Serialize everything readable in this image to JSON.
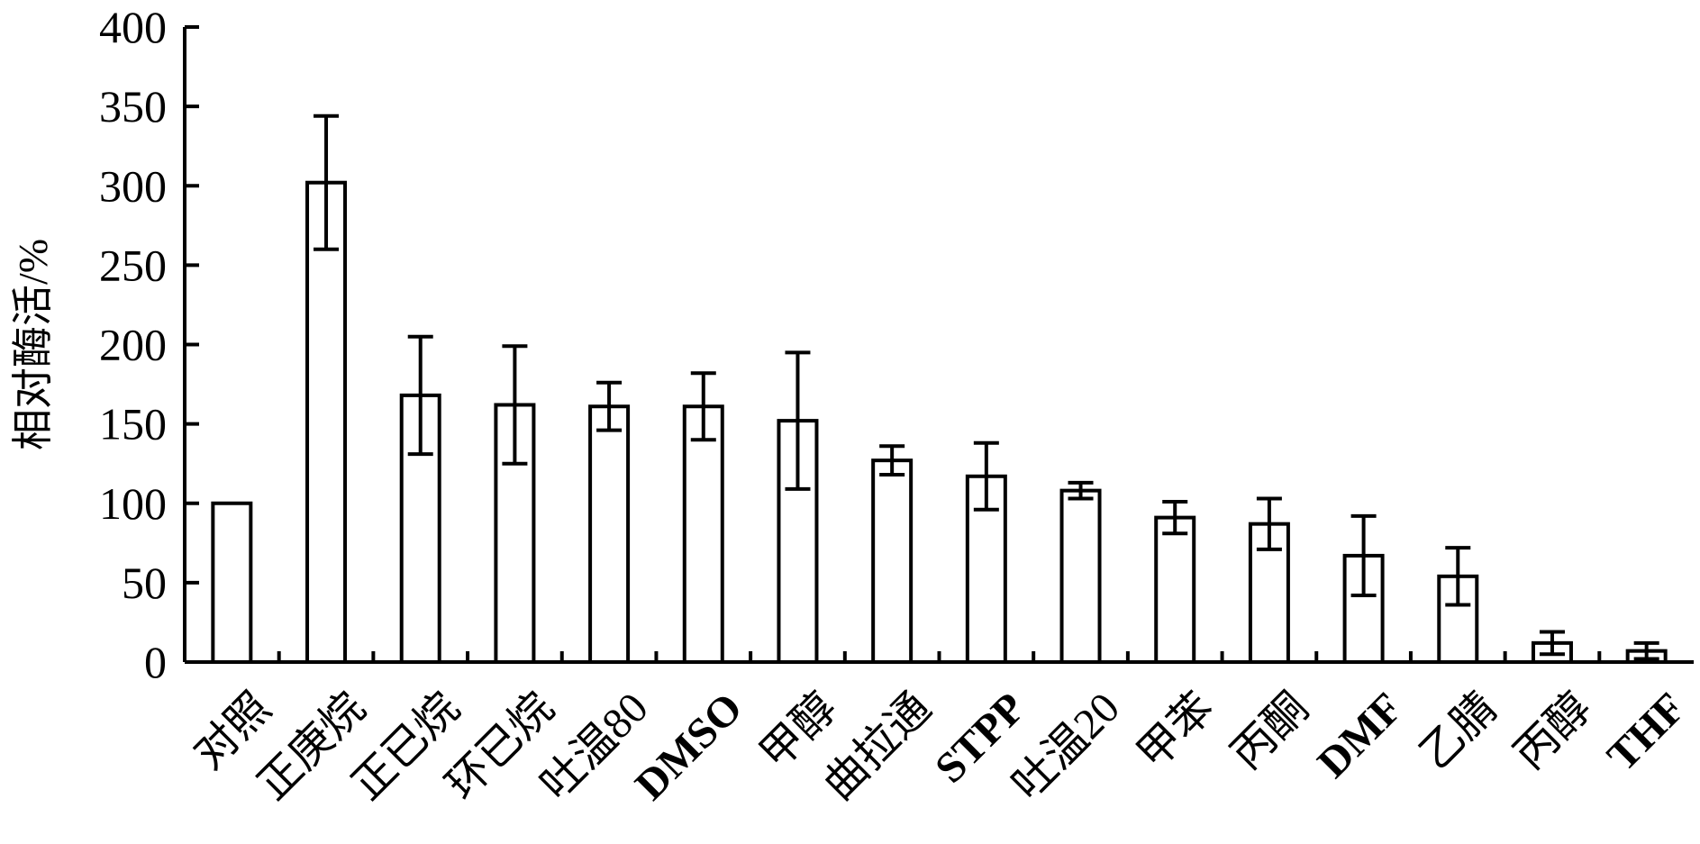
{
  "chart_data": {
    "type": "bar",
    "title": "",
    "xlabel": "",
    "ylabel": "相对酶活/%",
    "ylim": [
      0,
      400
    ],
    "yticks": [
      0,
      50,
      100,
      150,
      200,
      250,
      300,
      350,
      400
    ],
    "grid": false,
    "legend": "none",
    "categories": [
      "对照",
      "正庚烷",
      "正已烷",
      "环已烷",
      "吐温80",
      "DMSO",
      "甲醇",
      "曲拉通",
      "STPP",
      "吐温20",
      "甲苯",
      "丙酮",
      "DMF",
      "乙腈",
      "丙醇",
      "THF"
    ],
    "values": [
      100,
      302,
      168,
      162,
      161,
      161,
      152,
      127,
      117,
      108,
      91,
      87,
      67,
      54,
      12,
      7
    ],
    "errors": [
      0,
      42,
      37,
      37,
      15,
      21,
      43,
      9,
      21,
      5,
      10,
      16,
      25,
      18,
      7,
      5
    ],
    "colors": {
      "bar_fill": "#ffffff",
      "stroke": "#000000"
    }
  }
}
